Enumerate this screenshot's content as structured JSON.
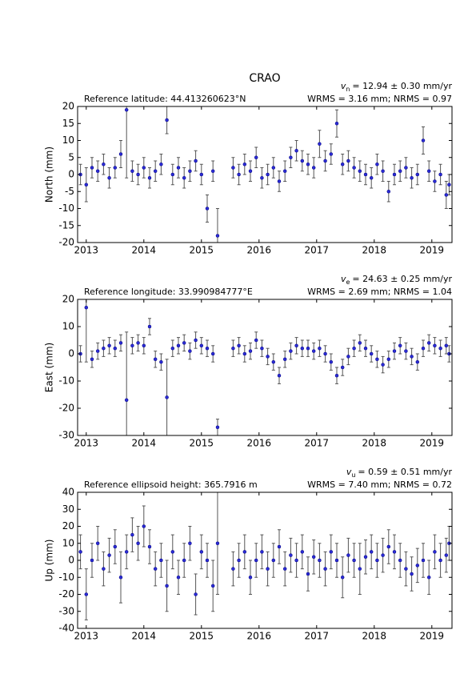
{
  "chart_data": [
    {
      "type": "scatter",
      "title": "CRAO",
      "velocity": {
        "symbol": "v",
        "subscript": "n",
        "text": "= 12.94 ± 0.30 mm/yr"
      },
      "reference": "Reference latitude: 44.413260623°N",
      "stats": "WRMS = 3.16 mm; NRMS = 0.97",
      "y_label": "North (mm)",
      "xlim": [
        2012.85,
        2019.35
      ],
      "xticks": [
        2013,
        2014,
        2015,
        2016,
        2017,
        2018,
        2019
      ],
      "ylim": [
        -20,
        20
      ],
      "yticks": [
        -20,
        -15,
        -10,
        -5,
        0,
        5,
        10,
        15,
        20
      ],
      "color": "#2b2bd6",
      "error_color": "#555555",
      "x": [
        2012.9,
        2013.0,
        2013.1,
        2013.2,
        2013.3,
        2013.4,
        2013.5,
        2013.6,
        2013.7,
        2013.8,
        2013.9,
        2014.0,
        2014.1,
        2014.2,
        2014.3,
        2014.4,
        2014.5,
        2014.6,
        2014.7,
        2014.8,
        2014.9,
        2015.0,
        2015.1,
        2015.2,
        2015.28,
        2015.55,
        2015.65,
        2015.75,
        2015.85,
        2015.95,
        2016.05,
        2016.15,
        2016.25,
        2016.35,
        2016.45,
        2016.55,
        2016.65,
        2016.75,
        2016.85,
        2016.95,
        2017.05,
        2017.15,
        2017.25,
        2017.35,
        2017.45,
        2017.55,
        2017.65,
        2017.75,
        2017.85,
        2017.95,
        2018.05,
        2018.15,
        2018.25,
        2018.35,
        2018.45,
        2018.55,
        2018.65,
        2018.75,
        2018.85,
        2018.95,
        2019.05,
        2019.15,
        2019.25,
        2019.3
      ],
      "values": [
        0,
        -3,
        2,
        1,
        3,
        -1,
        2,
        6,
        19,
        1,
        0,
        2,
        -1,
        1,
        3,
        16,
        0,
        2,
        -1,
        1,
        4,
        0,
        -10,
        1,
        -18,
        2,
        0,
        3,
        1,
        5,
        -1,
        0,
        2,
        -2,
        1,
        5,
        7,
        4,
        3,
        2,
        9,
        4,
        6,
        15,
        3,
        4,
        2,
        1,
        0,
        -1,
        3,
        1,
        -5,
        0,
        1,
        2,
        -1,
        0,
        10,
        1,
        -2,
        0,
        -6,
        -3
      ],
      "errors": [
        3,
        5,
        3,
        3,
        3,
        3,
        3,
        4,
        20,
        3,
        3,
        3,
        3,
        3,
        3,
        4,
        3,
        3,
        3,
        3,
        3,
        3,
        4,
        3,
        8,
        3,
        3,
        3,
        3,
        3,
        3,
        3,
        3,
        3,
        3,
        3,
        3,
        3,
        3,
        3,
        4,
        3,
        3,
        4,
        3,
        3,
        3,
        3,
        3,
        3,
        3,
        3,
        3,
        3,
        3,
        3,
        3,
        3,
        4,
        3,
        3,
        3,
        4,
        3
      ]
    },
    {
      "type": "scatter",
      "velocity": {
        "symbol": "v",
        "subscript": "e",
        "text": "= 24.63 ± 0.25 mm/yr"
      },
      "reference": "Reference longitude: 33.990984777°E",
      "stats": "WRMS = 2.69 mm; NRMS = 1.04",
      "y_label": "East (mm)",
      "xlim": [
        2012.85,
        2019.35
      ],
      "xticks": [
        2013,
        2014,
        2015,
        2016,
        2017,
        2018,
        2019
      ],
      "ylim": [
        -30,
        20
      ],
      "yticks": [
        -30,
        -20,
        -10,
        0,
        10,
        20
      ],
      "color": "#2b2bd6",
      "error_color": "#555555",
      "x": [
        2012.9,
        2013.0,
        2013.1,
        2013.2,
        2013.3,
        2013.4,
        2013.5,
        2013.6,
        2013.7,
        2013.8,
        2013.9,
        2014.0,
        2014.1,
        2014.2,
        2014.3,
        2014.4,
        2014.5,
        2014.6,
        2014.7,
        2014.8,
        2014.9,
        2015.0,
        2015.1,
        2015.2,
        2015.28,
        2015.55,
        2015.65,
        2015.75,
        2015.85,
        2015.95,
        2016.05,
        2016.15,
        2016.25,
        2016.35,
        2016.45,
        2016.55,
        2016.65,
        2016.75,
        2016.85,
        2016.95,
        2017.05,
        2017.15,
        2017.25,
        2017.35,
        2017.45,
        2017.55,
        2017.65,
        2017.75,
        2017.85,
        2017.95,
        2018.05,
        2018.15,
        2018.25,
        2018.35,
        2018.45,
        2018.55,
        2018.65,
        2018.75,
        2018.85,
        2018.95,
        2019.05,
        2019.15,
        2019.25,
        2019.3
      ],
      "values": [
        0,
        17,
        -2,
        1,
        2,
        3,
        2,
        4,
        -17,
        3,
        4,
        3,
        10,
        -2,
        -3,
        -16,
        2,
        3,
        4,
        1,
        5,
        3,
        2,
        0,
        -27,
        2,
        3,
        0,
        1,
        5,
        2,
        -1,
        -3,
        -8,
        -2,
        1,
        3,
        2,
        2,
        1,
        2,
        0,
        -3,
        -8,
        -5,
        -1,
        2,
        4,
        2,
        0,
        -2,
        -4,
        -2,
        1,
        3,
        1,
        -1,
        -3,
        2,
        4,
        3,
        2,
        3,
        0
      ],
      "errors": [
        3,
        20,
        3,
        3,
        3,
        3,
        3,
        3,
        25,
        3,
        3,
        3,
        3,
        3,
        3,
        14,
        3,
        3,
        3,
        3,
        3,
        3,
        3,
        3,
        3,
        3,
        3,
        3,
        3,
        3,
        3,
        3,
        3,
        3,
        3,
        3,
        3,
        3,
        3,
        3,
        3,
        3,
        3,
        3,
        3,
        3,
        3,
        3,
        3,
        3,
        3,
        3,
        3,
        3,
        3,
        3,
        3,
        3,
        3,
        3,
        3,
        3,
        3,
        3
      ]
    },
    {
      "type": "scatter",
      "velocity": {
        "symbol": "v",
        "subscript": "u",
        "text": "= 0.59 ± 0.51 mm/yr"
      },
      "reference": "Reference ellipsoid height: 365.7916 m",
      "stats": "WRMS = 7.40 mm; NRMS = 0.72",
      "y_label": "Up (mm)",
      "xlim": [
        2012.85,
        2019.35
      ],
      "xticks": [
        2013,
        2014,
        2015,
        2016,
        2017,
        2018,
        2019
      ],
      "ylim": [
        -40,
        40
      ],
      "yticks": [
        -40,
        -30,
        -20,
        -10,
        0,
        10,
        20,
        30,
        40
      ],
      "color": "#2b2bd6",
      "error_color": "#555555",
      "x": [
        2012.9,
        2013.0,
        2013.1,
        2013.2,
        2013.3,
        2013.4,
        2013.5,
        2013.6,
        2013.7,
        2013.8,
        2013.9,
        2014.0,
        2014.1,
        2014.2,
        2014.3,
        2014.4,
        2014.5,
        2014.6,
        2014.7,
        2014.8,
        2014.9,
        2015.0,
        2015.1,
        2015.2,
        2015.28,
        2015.55,
        2015.65,
        2015.75,
        2015.85,
        2015.95,
        2016.05,
        2016.15,
        2016.25,
        2016.35,
        2016.45,
        2016.55,
        2016.65,
        2016.75,
        2016.85,
        2016.95,
        2017.05,
        2017.15,
        2017.25,
        2017.35,
        2017.45,
        2017.55,
        2017.65,
        2017.75,
        2017.85,
        2017.95,
        2018.05,
        2018.15,
        2018.25,
        2018.35,
        2018.45,
        2018.55,
        2018.65,
        2018.75,
        2018.85,
        2018.95,
        2019.05,
        2019.15,
        2019.25,
        2019.3
      ],
      "values": [
        5,
        -20,
        0,
        10,
        -5,
        3,
        8,
        -10,
        5,
        15,
        10,
        20,
        8,
        -5,
        0,
        -15,
        5,
        -10,
        0,
        10,
        -20,
        5,
        0,
        -15,
        10,
        -5,
        0,
        5,
        -10,
        0,
        5,
        -5,
        0,
        8,
        -5,
        3,
        0,
        5,
        -8,
        2,
        0,
        -5,
        5,
        0,
        -10,
        3,
        0,
        -5,
        2,
        5,
        0,
        3,
        8,
        5,
        0,
        -5,
        -8,
        -3,
        0,
        -10,
        5,
        0,
        3,
        10
      ],
      "errors": [
        10,
        15,
        10,
        10,
        10,
        10,
        10,
        15,
        10,
        10,
        10,
        12,
        10,
        10,
        10,
        15,
        10,
        10,
        10,
        10,
        12,
        10,
        10,
        15,
        30,
        10,
        10,
        10,
        10,
        10,
        10,
        10,
        10,
        10,
        10,
        10,
        10,
        10,
        10,
        10,
        10,
        10,
        10,
        10,
        12,
        10,
        10,
        15,
        10,
        10,
        10,
        10,
        10,
        10,
        10,
        10,
        10,
        10,
        10,
        10,
        10,
        10,
        10,
        10
      ]
    }
  ]
}
